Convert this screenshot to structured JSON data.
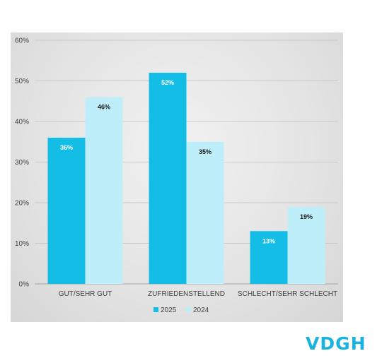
{
  "chart_data": {
    "type": "bar",
    "categories": [
      "GUT/SEHR GUT",
      "ZUFRIEDENSTELLEND",
      "SCHLECHT/SEHR SCHLECHT"
    ],
    "series": [
      {
        "name": "2025",
        "values": [
          36,
          52,
          13
        ],
        "labels": [
          "36%",
          "52%",
          "13%"
        ],
        "color": "#14bde6",
        "label_color": "#ffffff"
      },
      {
        "name": "2024",
        "values": [
          46,
          35,
          19
        ],
        "labels": [
          "46%",
          "35%",
          "19%"
        ],
        "color": "#bfeefb",
        "label_color": "#1a1a1a"
      }
    ],
    "y_ticks": [
      "0%",
      "10%",
      "20%",
      "30%",
      "40%",
      "50%",
      "60%"
    ],
    "ylim": [
      0,
      60
    ],
    "grid": true,
    "legend_position": "bottom"
  },
  "logo": {
    "text": "VDGH",
    "color": "#1ab2de"
  }
}
